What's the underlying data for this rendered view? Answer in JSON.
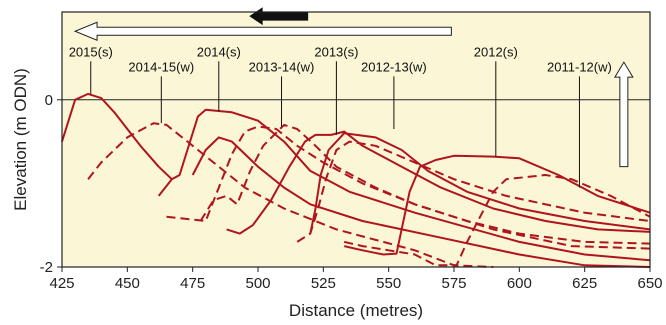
{
  "chart_data": {
    "type": "line",
    "title": "",
    "xlabel": "Distance  (metres)",
    "ylabel": "Elevation  (m ODN)",
    "xlim": [
      425,
      650
    ],
    "ylim": [
      -2,
      1.05
    ],
    "x_ticks": [
      425,
      450,
      475,
      500,
      525,
      550,
      575,
      600,
      625,
      650
    ],
    "y_ticks": [
      0,
      -2
    ],
    "x_tick_labels": [
      "425",
      "450",
      "475",
      "500",
      "525",
      "550",
      "575",
      "600",
      "625",
      "650"
    ],
    "y_tick_labels": [
      "0",
      "-2"
    ],
    "grid": false,
    "background": "#fbf6d6",
    "series_color": "#b0141c",
    "series": [
      {
        "style": "solid",
        "points": [
          [
            425,
            -0.5
          ],
          [
            430,
            0.0
          ],
          [
            435,
            0.07
          ],
          [
            440,
            0.02
          ],
          [
            445,
            -0.15
          ],
          [
            455,
            -0.55
          ],
          [
            462,
            -0.8
          ],
          [
            467,
            -0.95
          ]
        ]
      },
      {
        "style": "dashed",
        "points": [
          [
            435,
            -0.95
          ],
          [
            440,
            -0.75
          ],
          [
            450,
            -0.45
          ],
          [
            460,
            -0.28
          ],
          [
            465,
            -0.3
          ],
          [
            475,
            -0.55
          ],
          [
            485,
            -0.8
          ],
          [
            495,
            -1.05
          ],
          [
            510,
            -1.3
          ],
          [
            530,
            -1.55
          ],
          [
            560,
            -1.8
          ],
          [
            575,
            -1.98
          ],
          [
            590,
            -2.0
          ]
        ]
      },
      {
        "style": "solid",
        "points": [
          [
            462,
            -1.15
          ],
          [
            467,
            -0.95
          ],
          [
            470,
            -0.9
          ],
          [
            473,
            -0.6
          ],
          [
            477,
            -0.2
          ],
          [
            480,
            -0.12
          ],
          [
            490,
            -0.15
          ],
          [
            500,
            -0.25
          ],
          [
            510,
            -0.5
          ],
          [
            520,
            -0.85
          ],
          [
            535,
            -1.1
          ],
          [
            560,
            -1.35
          ],
          [
            600,
            -1.7
          ],
          [
            625,
            -1.85
          ],
          [
            650,
            -1.92
          ]
        ]
      },
      {
        "style": "dashed",
        "points": [
          [
            465,
            -1.4
          ],
          [
            480,
            -1.45
          ],
          [
            485,
            -1.05
          ],
          [
            490,
            -0.65
          ],
          [
            495,
            -0.38
          ],
          [
            500,
            -0.32
          ],
          [
            507,
            -0.35
          ],
          [
            515,
            -0.55
          ],
          [
            525,
            -0.75
          ],
          [
            540,
            -1.0
          ],
          [
            560,
            -1.25
          ],
          [
            590,
            -1.55
          ],
          [
            620,
            -1.75
          ],
          [
            650,
            -1.78
          ]
        ]
      },
      {
        "style": "solid",
        "points": [
          [
            475,
            -0.9
          ],
          [
            480,
            -0.6
          ],
          [
            485,
            -0.45
          ],
          [
            490,
            -0.5
          ],
          [
            500,
            -0.8
          ],
          [
            510,
            -1.05
          ],
          [
            520,
            -1.25
          ],
          [
            540,
            -1.45
          ],
          [
            570,
            -1.65
          ],
          [
            600,
            -1.85
          ],
          [
            625,
            -1.98
          ],
          [
            650,
            -2.0
          ]
        ]
      },
      {
        "style": "dashed",
        "points": [
          [
            478,
            -1.45
          ],
          [
            483,
            -1.2
          ],
          [
            488,
            -1.15
          ],
          [
            492,
            -1.25
          ],
          [
            497,
            -0.85
          ],
          [
            502,
            -0.55
          ],
          [
            510,
            -0.3
          ],
          [
            515,
            -0.35
          ],
          [
            522,
            -0.55
          ],
          [
            530,
            -0.8
          ],
          [
            545,
            -1.05
          ],
          [
            560,
            -1.25
          ],
          [
            580,
            -1.45
          ],
          [
            600,
            -1.6
          ],
          [
            625,
            -1.7
          ],
          [
            650,
            -1.72
          ]
        ]
      },
      {
        "style": "solid",
        "points": [
          [
            488,
            -1.55
          ],
          [
            493,
            -1.6
          ],
          [
            498,
            -1.5
          ],
          [
            505,
            -1.2
          ],
          [
            512,
            -0.8
          ],
          [
            518,
            -0.5
          ],
          [
            522,
            -0.42
          ],
          [
            528,
            -0.42
          ],
          [
            533,
            -0.38
          ],
          [
            540,
            -0.55
          ],
          [
            555,
            -0.8
          ],
          [
            570,
            -1.05
          ],
          [
            590,
            -1.3
          ],
          [
            610,
            -1.45
          ],
          [
            630,
            -1.55
          ],
          [
            650,
            -1.58
          ]
        ]
      },
      {
        "style": "dashed",
        "points": [
          [
            515,
            -1.7
          ],
          [
            520,
            -1.6
          ],
          [
            523,
            -1.3
          ],
          [
            526,
            -0.95
          ],
          [
            530,
            -0.6
          ],
          [
            535,
            -0.5
          ],
          [
            545,
            -0.55
          ],
          [
            560,
            -0.75
          ],
          [
            575,
            -0.95
          ],
          [
            595,
            -1.15
          ],
          [
            625,
            -1.35
          ],
          [
            650,
            -1.45
          ]
        ]
      },
      {
        "style": "solid",
        "points": [
          [
            520,
            -1.6
          ],
          [
            522,
            -1.3
          ],
          [
            524,
            -0.9
          ],
          [
            527,
            -0.6
          ],
          [
            533,
            -0.4
          ],
          [
            545,
            -0.45
          ],
          [
            555,
            -0.6
          ],
          [
            565,
            -0.85
          ],
          [
            580,
            -1.1
          ],
          [
            600,
            -1.3
          ],
          [
            625,
            -1.45
          ],
          [
            650,
            -1.55
          ]
        ]
      },
      {
        "style": "dashed",
        "points": [
          [
            533,
            -1.7
          ],
          [
            540,
            -1.75
          ],
          [
            550,
            -1.8
          ],
          [
            560,
            -1.85
          ],
          [
            568,
            -1.98
          ],
          [
            576,
            -1.98
          ],
          [
            580,
            -1.7
          ],
          [
            585,
            -1.4
          ],
          [
            590,
            -1.1
          ],
          [
            595,
            -0.95
          ],
          [
            610,
            -0.9
          ],
          [
            620,
            -0.95
          ],
          [
            635,
            -1.15
          ],
          [
            650,
            -1.4
          ]
        ]
      },
      {
        "style": "solid",
        "points": [
          [
            533,
            -1.75
          ],
          [
            540,
            -1.8
          ],
          [
            548,
            -1.85
          ],
          [
            553,
            -1.84
          ],
          [
            558,
            -1.1
          ],
          [
            562,
            -0.8
          ],
          [
            568,
            -0.72
          ],
          [
            575,
            -0.67
          ],
          [
            590,
            -0.68
          ],
          [
            600,
            -0.7
          ],
          [
            615,
            -0.9
          ],
          [
            630,
            -1.15
          ],
          [
            650,
            -1.35
          ]
        ]
      }
    ],
    "annotations": [
      {
        "text": "2015(s)",
        "x": 436,
        "y_label": 0.52,
        "y_end": 0.07
      },
      {
        "text": "2014-15(w)",
        "x": 463,
        "y_label": 0.34,
        "y_end": -0.28
      },
      {
        "text": "2014(s)",
        "x": 485,
        "y_label": 0.52,
        "y_end": -0.14
      },
      {
        "text": "2013-14(w)",
        "x": 509,
        "y_label": 0.34,
        "y_end": -0.32
      },
      {
        "text": "2013(s)",
        "x": 530,
        "y_label": 0.52,
        "y_end": -0.42
      },
      {
        "text": "2012-13(w)",
        "x": 552,
        "y_label": 0.34,
        "y_end": -0.35
      },
      {
        "text": "2012(s)",
        "x": 591,
        "y_label": 0.52,
        "y_end": -0.68
      },
      {
        "text": "2011-12(w)",
        "x": 623,
        "y_label": 0.34,
        "y_end": -1.05
      }
    ],
    "arrows": {
      "big_left": {
        "x_from": 574,
        "x_to": 430,
        "y": 0.82
      },
      "small_left": {
        "x_from": 519,
        "x_to": 497,
        "y": 1.0
      },
      "up": {
        "x": 640,
        "y_from": -0.8,
        "y_to": 0.45
      }
    }
  }
}
